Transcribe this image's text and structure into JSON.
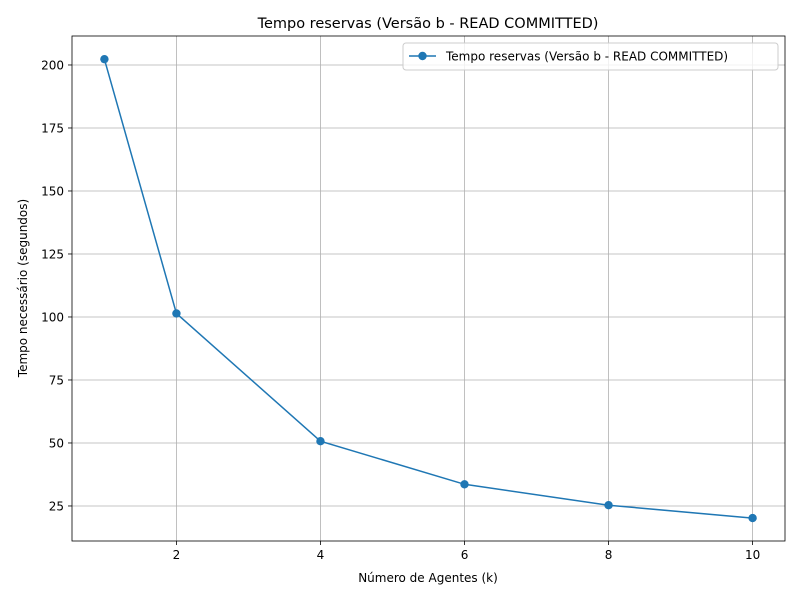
{
  "chart_data": {
    "type": "line",
    "title": "Tempo reservas (Versão b - READ COMMITTED)",
    "xlabel": "Número de Agentes (k)",
    "ylabel": "Tempo necessário (segundos)",
    "xlim": [
      0.55,
      10.45
    ],
    "ylim": [
      11.1,
      211.5
    ],
    "xticks": [
      2,
      4,
      6,
      8,
      10
    ],
    "yticks": [
      25,
      50,
      75,
      100,
      125,
      150,
      175,
      200
    ],
    "grid": true,
    "legend_position": "top-right",
    "series": [
      {
        "name": "Tempo reservas (Versão b - READ COMMITTED)",
        "color": "#1f77b4",
        "marker": "circle",
        "x": [
          1,
          2,
          4,
          6,
          8,
          10
        ],
        "y": [
          202.3,
          101.4,
          50.7,
          33.6,
          25.3,
          20.2
        ]
      }
    ]
  }
}
